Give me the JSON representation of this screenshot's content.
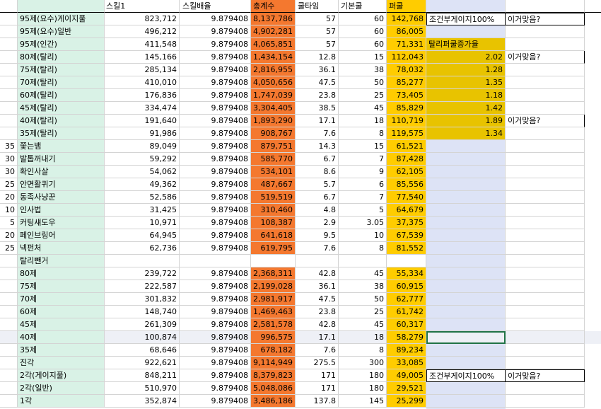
{
  "colors": {
    "label_fill": "#d9f2e6",
    "total_fill": "#f4782f",
    "pull_fill": "#ffcc00",
    "side_fill": "#e8c300",
    "column_tint": "#dde3f6",
    "row_highlight": "#eef0f6",
    "gridline": "#d4d4d4"
  },
  "headers": {
    "skill1": "스킬1",
    "multiplier": "스킬배율",
    "total": "총계수",
    "cooldown": "쿨타임",
    "base_cool": "기본쿨",
    "pull": "퍼쿨"
  },
  "rows": [
    {
      "num": "",
      "label": "95제(요수)게이지풀",
      "skill1": "823,712",
      "mult": "9.879408",
      "total": "8,137,786",
      "cd": "57",
      "base": "60",
      "pull": "142,768",
      "note": "조건부게이지100%",
      "note2": "이거맞음?"
    },
    {
      "num": "",
      "label": "95제(요수)일반",
      "skill1": "496,212",
      "mult": "9.879408",
      "total": "4,902,281",
      "cd": "57",
      "base": "60",
      "pull": "86,005",
      "note": "",
      "note2": ""
    },
    {
      "num": "",
      "label": "95제(인간)",
      "skill1": "411,548",
      "mult": "9.879408",
      "total": "4,065,851",
      "cd": "57",
      "base": "60",
      "pull": "71,331",
      "note": "탈리퍼쿨증가율",
      "note2": ""
    },
    {
      "num": "",
      "label": "80제(탈리)",
      "skill1": "145,166",
      "mult": "9.879408",
      "total": "1,434,154",
      "cd": "12.8",
      "base": "15",
      "pull": "112,043",
      "note": "2.02",
      "note2": "이거맞음?"
    },
    {
      "num": "",
      "label": "75제(탈리)",
      "skill1": "285,134",
      "mult": "9.879408",
      "total": "2,816,955",
      "cd": "36.1",
      "base": "38",
      "pull": "78,032",
      "note": "1.28",
      "note2": ""
    },
    {
      "num": "",
      "label": "70제(탈리)",
      "skill1": "410,010",
      "mult": "9.879408",
      "total": "4,050,656",
      "cd": "47.5",
      "base": "50",
      "pull": "85,277",
      "note": "1.35",
      "note2": ""
    },
    {
      "num": "",
      "label": "60제(탈리)",
      "skill1": "176,836",
      "mult": "9.879408",
      "total": "1,747,039",
      "cd": "23.8",
      "base": "25",
      "pull": "73,405",
      "note": "1.18",
      "note2": ""
    },
    {
      "num": "",
      "label": "45제(탈리)",
      "skill1": "334,474",
      "mult": "9.879408",
      "total": "3,304,405",
      "cd": "38.5",
      "base": "45",
      "pull": "85,829",
      "note": "1.42",
      "note2": ""
    },
    {
      "num": "",
      "label": "40제(탈리)",
      "skill1": "191,640",
      "mult": "9.879408",
      "total": "1,893,290",
      "cd": "17.1",
      "base": "18",
      "pull": "110,719",
      "note": "1.89",
      "note2": "이거맞음?"
    },
    {
      "num": "",
      "label": "35제(탈리)",
      "skill1": "91,986",
      "mult": "9.879408",
      "total": "908,767",
      "cd": "7.6",
      "base": "8",
      "pull": "119,575",
      "note": "1.34",
      "note2": ""
    },
    {
      "num": "35",
      "label": "쫓는뱀",
      "skill1": "89,049",
      "mult": "9.879408",
      "total": "879,751",
      "cd": "14.3",
      "base": "15",
      "pull": "61,521",
      "note": "",
      "note2": ""
    },
    {
      "num": "30",
      "label": "발톱꺼내기",
      "skill1": "59,292",
      "mult": "9.879408",
      "total": "585,770",
      "cd": "6.7",
      "base": "7",
      "pull": "87,428",
      "note": "",
      "note2": ""
    },
    {
      "num": "30",
      "label": "확인사살",
      "skill1": "54,062",
      "mult": "9.879408",
      "total": "534,101",
      "cd": "8.6",
      "base": "9",
      "pull": "62,105",
      "note": "",
      "note2": ""
    },
    {
      "num": "25",
      "label": "안면활퀴기",
      "skill1": "49,362",
      "mult": "9.879408",
      "total": "487,667",
      "cd": "5.7",
      "base": "6",
      "pull": "85,556",
      "note": "",
      "note2": ""
    },
    {
      "num": "20",
      "label": "동족사냥꾼",
      "skill1": "52,586",
      "mult": "9.879408",
      "total": "519,519",
      "cd": "6.7",
      "base": "7",
      "pull": "77,540",
      "note": "",
      "note2": ""
    },
    {
      "num": "10",
      "label": "인사법",
      "skill1": "31,425",
      "mult": "9.879408",
      "total": "310,460",
      "cd": "4.8",
      "base": "5",
      "pull": "64,679",
      "note": "",
      "note2": ""
    },
    {
      "num": "5",
      "label": "커팅섀도우",
      "skill1": "10,971",
      "mult": "9.879408",
      "total": "108,387",
      "cd": "2.9",
      "base": "3.05",
      "pull": "37,375",
      "note": "",
      "note2": ""
    },
    {
      "num": "20",
      "label": "페인브링어",
      "skill1": "64,945",
      "mult": "9.879408",
      "total": "641,618",
      "cd": "9.5",
      "base": "10",
      "pull": "67,539",
      "note": "",
      "note2": ""
    },
    {
      "num": "25",
      "label": "넥펀처",
      "skill1": "62,736",
      "mult": "9.879408",
      "total": "619,795",
      "cd": "7.6",
      "base": "8",
      "pull": "81,552",
      "note": "",
      "note2": ""
    },
    {
      "num": "",
      "label": "탈리뺀거",
      "skill1": "",
      "mult": "",
      "total": "",
      "cd": "",
      "base": "",
      "pull": "",
      "note": "",
      "note2": ""
    },
    {
      "num": "",
      "label": "80제",
      "skill1": "239,722",
      "mult": "9.879408",
      "total": "2,368,311",
      "cd": "42.8",
      "base": "45",
      "pull": "55,334",
      "note": "",
      "note2": ""
    },
    {
      "num": "",
      "label": "75제",
      "skill1": "222,587",
      "mult": "9.879408",
      "total": "2,199,028",
      "cd": "36.1",
      "base": "38",
      "pull": "60,915",
      "note": "",
      "note2": ""
    },
    {
      "num": "",
      "label": "70제",
      "skill1": "301,832",
      "mult": "9.879408",
      "total": "2,981,917",
      "cd": "47.5",
      "base": "50",
      "pull": "62,777",
      "note": "",
      "note2": ""
    },
    {
      "num": "",
      "label": "60제",
      "skill1": "148,740",
      "mult": "9.879408",
      "total": "1,469,463",
      "cd": "23.8",
      "base": "25",
      "pull": "61,742",
      "note": "",
      "note2": ""
    },
    {
      "num": "",
      "label": "45제",
      "skill1": "261,309",
      "mult": "9.879408",
      "total": "2,581,578",
      "cd": "42.8",
      "base": "45",
      "pull": "60,317",
      "note": "",
      "note2": ""
    },
    {
      "num": "",
      "label": "40제",
      "skill1": "100,874",
      "mult": "9.879408",
      "total": "996,575",
      "cd": "17.1",
      "base": "18",
      "pull": "58,279",
      "note": "",
      "note2": ""
    },
    {
      "num": "",
      "label": "35제",
      "skill1": "68,646",
      "mult": "9.879408",
      "total": "678,182",
      "cd": "7.6",
      "base": "8",
      "pull": "89,234",
      "note": "",
      "note2": ""
    },
    {
      "num": "",
      "label": "진각",
      "skill1": "922,621",
      "mult": "9.879408",
      "total": "9,114,949",
      "cd": "275.5",
      "base": "300",
      "pull": "33,085",
      "note": "",
      "note2": ""
    },
    {
      "num": "",
      "label": "2각(게이지풀)",
      "skill1": "848,211",
      "mult": "9.879408",
      "total": "8,379,823",
      "cd": "171",
      "base": "180",
      "pull": "49,005",
      "note": "조건부게이지100%",
      "note2": "이거맞음?"
    },
    {
      "num": "",
      "label": "2각(일반)",
      "skill1": "510,970",
      "mult": "9.879408",
      "total": "5,048,086",
      "cd": "171",
      "base": "180",
      "pull": "29,521",
      "note": "",
      "note2": ""
    },
    {
      "num": "",
      "label": "1각",
      "skill1": "352,874",
      "mult": "9.879408",
      "total": "3,486,186",
      "cd": "137.8",
      "base": "145",
      "pull": "25,299",
      "note": "",
      "note2": ""
    }
  ]
}
